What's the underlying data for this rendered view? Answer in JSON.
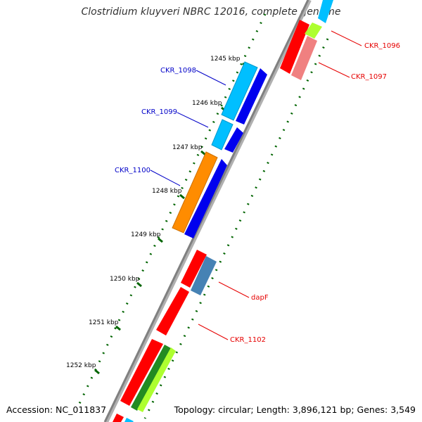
{
  "title": "Clostridium kluyveri NBRC 12016, complete genome",
  "footer": {
    "accession": "Accession: NC_011837",
    "summary": "Topology: circular; Length: 3,896,121 bp; Genes: 3,549"
  },
  "ticks": [
    "1245 kbp",
    "1246 kbp",
    "1247 kbp",
    "1248 kbp",
    "1249 kbp",
    "1250 kbp",
    "1251 kbp",
    "1252 kbp"
  ],
  "gene_labels": {
    "ckr_1096": "CKR_1096",
    "ckr_1097": "CKR_1097",
    "ckr_1098": "CKR_1098",
    "ckr_1099": "CKR_1099",
    "ckr_1100": "CKR_1100",
    "dapf": "dapF",
    "ckr_1102": "CKR_1102"
  },
  "colors": {
    "backbone": "#808080",
    "forward_cds": "#0000ee",
    "forward_rna": "#00bfff",
    "orange": "#ff8c00",
    "reverse_cds": "#ff0000",
    "reverse_pink": "#f08080",
    "steel": "#4682b4",
    "lime": "#adff2f",
    "darkgreen": "#228b22",
    "label_blue": "#0000c8",
    "label_red": "#e60000",
    "dotted": "#006400"
  }
}
